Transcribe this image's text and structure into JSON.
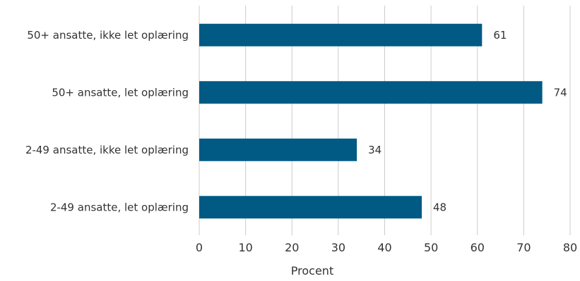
{
  "chart_data": {
    "type": "bar",
    "orientation": "horizontal",
    "categories": [
      "50+ ansatte, ikke let oplæring",
      "50+ ansatte, let oplæring",
      "2-49 ansatte, ikke let oplæring",
      "2-49 ansatte, let oplæring"
    ],
    "values": [
      61,
      74,
      34,
      48
    ],
    "xlabel": "Procent",
    "xlim": [
      0,
      80
    ],
    "xticks": [
      "0",
      "10",
      "20",
      "30",
      "40",
      "50",
      "60",
      "70",
      "80"
    ],
    "grid": true,
    "legend": "none",
    "bar_color": "#005a84",
    "grid_color": "#cccccc"
  }
}
